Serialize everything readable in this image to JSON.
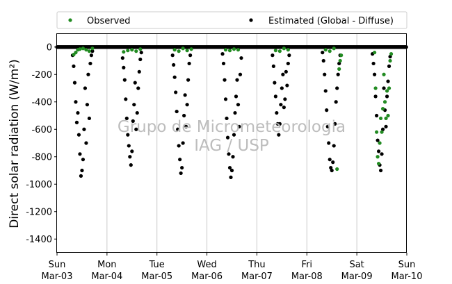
{
  "chart_data": {
    "type": "scatter",
    "title": "",
    "ylabel": "Direct solar radiation (W/m²)",
    "xlabel": "",
    "ylim": [
      -1500,
      100
    ],
    "yticks": [
      0,
      -200,
      -400,
      -600,
      -800,
      -1000,
      -1200,
      -1400
    ],
    "xlim": [
      "2019-03-03 00:00",
      "2019-03-10 00:00"
    ],
    "x_ticks": [
      {
        "day": "Sun",
        "date": "Mar-03"
      },
      {
        "day": "Mon",
        "date": "Mar-04"
      },
      {
        "day": "Tue",
        "date": "Mar-05"
      },
      {
        "day": "Wed",
        "date": "Mar-06"
      },
      {
        "day": "Thu",
        "date": "Mar-07"
      },
      {
        "day": "Fri",
        "date": "Mar-08"
      },
      {
        "day": "Sat",
        "date": "Mar-09"
      },
      {
        "day": "Sun",
        "date": "Mar-10"
      }
    ],
    "grid": "vertical",
    "legend_position": "above-top",
    "watermark": [
      "Grupo de Micrometeorologia",
      "IAG / USP"
    ],
    "series": [
      {
        "name": "Observed",
        "color": "#228b22",
        "points": [
          {
            "day": 0,
            "hour": 8.0,
            "value": -55
          },
          {
            "day": 0,
            "hour": 9.0,
            "value": -40
          },
          {
            "day": 0,
            "hour": 10.0,
            "value": -20
          },
          {
            "day": 0,
            "hour": 11.0,
            "value": -15
          },
          {
            "day": 0,
            "hour": 12.5,
            "value": -10
          },
          {
            "day": 0,
            "hour": 14.0,
            "value": -20
          },
          {
            "day": 0,
            "hour": 15.5,
            "value": -30
          },
          {
            "day": 0,
            "hour": 17.0,
            "value": -10
          },
          {
            "day": 1,
            "hour": 8.0,
            "value": -35
          },
          {
            "day": 1,
            "hour": 10.0,
            "value": -25
          },
          {
            "day": 1,
            "hour": 12.0,
            "value": -20
          },
          {
            "day": 1,
            "hour": 14.0,
            "value": -30
          },
          {
            "day": 1,
            "hour": 16.0,
            "value": -15
          },
          {
            "day": 2,
            "hour": 8.5,
            "value": -20
          },
          {
            "day": 2,
            "hour": 10.5,
            "value": -30
          },
          {
            "day": 2,
            "hour": 12.5,
            "value": -10
          },
          {
            "day": 2,
            "hour": 14.5,
            "value": -25
          },
          {
            "day": 2,
            "hour": 16.5,
            "value": -15
          },
          {
            "day": 3,
            "hour": 9.0,
            "value": -20
          },
          {
            "day": 3,
            "hour": 11.0,
            "value": -25
          },
          {
            "day": 3,
            "hour": 13.0,
            "value": -15
          },
          {
            "day": 3,
            "hour": 15.0,
            "value": -20
          },
          {
            "day": 4,
            "hour": 9.0,
            "value": -25
          },
          {
            "day": 4,
            "hour": 11.0,
            "value": -30
          },
          {
            "day": 4,
            "hour": 13.0,
            "value": -10
          },
          {
            "day": 4,
            "hour": 15.0,
            "value": -20
          },
          {
            "day": 5,
            "hour": 9.0,
            "value": -20
          },
          {
            "day": 5,
            "hour": 11.0,
            "value": -30
          },
          {
            "day": 5,
            "hour": 13.0,
            "value": -10
          },
          {
            "day": 5,
            "hour": 14.5,
            "value": -890
          },
          {
            "day": 5,
            "hour": 15.5,
            "value": -160
          },
          {
            "day": 5,
            "hour": 16.0,
            "value": -100
          },
          {
            "day": 5,
            "hour": 16.5,
            "value": -60
          },
          {
            "day": 6,
            "hour": 8.5,
            "value": -40
          },
          {
            "day": 6,
            "hour": 9.0,
            "value": -300
          },
          {
            "day": 6,
            "hour": 9.5,
            "value": -620
          },
          {
            "day": 6,
            "hour": 10.0,
            "value": -800
          },
          {
            "day": 6,
            "hour": 10.5,
            "value": -850
          },
          {
            "day": 6,
            "hour": 11.0,
            "value": -700
          },
          {
            "day": 6,
            "hour": 11.5,
            "value": -520
          },
          {
            "day": 6,
            "hour": 12.0,
            "value": -620
          },
          {
            "day": 6,
            "hour": 12.5,
            "value": -450
          },
          {
            "day": 6,
            "hour": 13.0,
            "value": -200
          },
          {
            "day": 6,
            "hour": 13.5,
            "value": -400
          },
          {
            "day": 6,
            "hour": 14.0,
            "value": -520
          },
          {
            "day": 6,
            "hour": 14.5,
            "value": -320
          },
          {
            "day": 6,
            "hour": 15.0,
            "value": -500
          },
          {
            "day": 6,
            "hour": 15.5,
            "value": -300
          },
          {
            "day": 6,
            "hour": 16.0,
            "value": -100
          },
          {
            "day": 6,
            "hour": 16.5,
            "value": -50
          }
        ]
      },
      {
        "name": "Estimated (Global - Diffuse)",
        "color": "#000000",
        "points": [
          {
            "day": 0,
            "hour": 7.5,
            "value": -60
          },
          {
            "day": 0,
            "hour": 8.0,
            "value": -140
          },
          {
            "day": 0,
            "hour": 8.5,
            "value": -260
          },
          {
            "day": 0,
            "hour": 9.0,
            "value": -400
          },
          {
            "day": 0,
            "hour": 9.5,
            "value": -550
          },
          {
            "day": 0,
            "hour": 10.0,
            "value": -480
          },
          {
            "day": 0,
            "hour": 10.5,
            "value": -640
          },
          {
            "day": 0,
            "hour": 11.0,
            "value": -780
          },
          {
            "day": 0,
            "hour": 11.5,
            "value": -940
          },
          {
            "day": 0,
            "hour": 12.0,
            "value": -900
          },
          {
            "day": 0,
            "hour": 12.5,
            "value": -820
          },
          {
            "day": 0,
            "hour": 13.0,
            "value": -600
          },
          {
            "day": 0,
            "hour": 13.5,
            "value": -300
          },
          {
            "day": 0,
            "hour": 14.0,
            "value": -700
          },
          {
            "day": 0,
            "hour": 14.5,
            "value": -420
          },
          {
            "day": 0,
            "hour": 15.0,
            "value": -200
          },
          {
            "day": 0,
            "hour": 15.5,
            "value": -520
          },
          {
            "day": 0,
            "hour": 16.0,
            "value": -120
          },
          {
            "day": 0,
            "hour": 16.5,
            "value": -60
          },
          {
            "day": 0,
            "hour": 17.0,
            "value": -30
          },
          {
            "day": 1,
            "hour": 7.5,
            "value": -80
          },
          {
            "day": 1,
            "hour": 8.0,
            "value": -150
          },
          {
            "day": 1,
            "hour": 8.5,
            "value": -240
          },
          {
            "day": 1,
            "hour": 9.0,
            "value": -380
          },
          {
            "day": 1,
            "hour": 9.5,
            "value": -520
          },
          {
            "day": 1,
            "hour": 10.0,
            "value": -640
          },
          {
            "day": 1,
            "hour": 10.5,
            "value": -720
          },
          {
            "day": 1,
            "hour": 11.0,
            "value": -800
          },
          {
            "day": 1,
            "hour": 11.5,
            "value": -860
          },
          {
            "day": 1,
            "hour": 12.0,
            "value": -760
          },
          {
            "day": 1,
            "hour": 12.5,
            "value": -540
          },
          {
            "day": 1,
            "hour": 13.0,
            "value": -420
          },
          {
            "day": 1,
            "hour": 13.5,
            "value": -260
          },
          {
            "day": 1,
            "hour": 14.0,
            "value": -600
          },
          {
            "day": 1,
            "hour": 14.5,
            "value": -480
          },
          {
            "day": 1,
            "hour": 15.0,
            "value": -300
          },
          {
            "day": 1,
            "hour": 15.5,
            "value": -180
          },
          {
            "day": 1,
            "hour": 16.0,
            "value": -90
          },
          {
            "day": 1,
            "hour": 16.5,
            "value": -40
          },
          {
            "day": 2,
            "hour": 7.5,
            "value": -60
          },
          {
            "day": 2,
            "hour": 8.0,
            "value": -130
          },
          {
            "day": 2,
            "hour": 8.5,
            "value": -220
          },
          {
            "day": 2,
            "hour": 9.0,
            "value": -330
          },
          {
            "day": 2,
            "hour": 9.5,
            "value": -470
          },
          {
            "day": 2,
            "hour": 10.0,
            "value": -600
          },
          {
            "day": 2,
            "hour": 10.5,
            "value": -720
          },
          {
            "day": 2,
            "hour": 11.0,
            "value": -820
          },
          {
            "day": 2,
            "hour": 11.5,
            "value": -920
          },
          {
            "day": 2,
            "hour": 12.0,
            "value": -880
          },
          {
            "day": 2,
            "hour": 12.5,
            "value": -700
          },
          {
            "day": 2,
            "hour": 13.0,
            "value": -500
          },
          {
            "day": 2,
            "hour": 13.5,
            "value": -350
          },
          {
            "day": 2,
            "hour": 14.0,
            "value": -580
          },
          {
            "day": 2,
            "hour": 14.5,
            "value": -420
          },
          {
            "day": 2,
            "hour": 15.0,
            "value": -240
          },
          {
            "day": 2,
            "hour": 15.5,
            "value": -120
          },
          {
            "day": 2,
            "hour": 16.0,
            "value": -60
          },
          {
            "day": 3,
            "hour": 7.5,
            "value": -50
          },
          {
            "day": 3,
            "hour": 8.0,
            "value": -120
          },
          {
            "day": 3,
            "hour": 8.5,
            "value": -240
          },
          {
            "day": 3,
            "hour": 9.0,
            "value": -380
          },
          {
            "day": 3,
            "hour": 9.5,
            "value": -520
          },
          {
            "day": 3,
            "hour": 10.0,
            "value": -660
          },
          {
            "day": 3,
            "hour": 10.5,
            "value": -780
          },
          {
            "day": 3,
            "hour": 11.0,
            "value": -880
          },
          {
            "day": 3,
            "hour": 11.5,
            "value": -950
          },
          {
            "day": 3,
            "hour": 12.0,
            "value": -900
          },
          {
            "day": 3,
            "hour": 12.5,
            "value": -800
          },
          {
            "day": 3,
            "hour": 13.0,
            "value": -640
          },
          {
            "day": 3,
            "hour": 13.5,
            "value": -480
          },
          {
            "day": 3,
            "hour": 14.0,
            "value": -360
          },
          {
            "day": 3,
            "hour": 14.5,
            "value": -240
          },
          {
            "day": 3,
            "hour": 15.0,
            "value": -420
          },
          {
            "day": 3,
            "hour": 15.5,
            "value": -580
          },
          {
            "day": 3,
            "hour": 16.0,
            "value": -200
          },
          {
            "day": 3,
            "hour": 16.5,
            "value": -80
          },
          {
            "day": 4,
            "hour": 7.5,
            "value": -60
          },
          {
            "day": 4,
            "hour": 8.0,
            "value": -140
          },
          {
            "day": 4,
            "hour": 8.5,
            "value": -260
          },
          {
            "day": 4,
            "hour": 9.0,
            "value": -360
          },
          {
            "day": 4,
            "hour": 9.5,
            "value": -480
          },
          {
            "day": 4,
            "hour": 10.0,
            "value": -560
          },
          {
            "day": 4,
            "hour": 10.5,
            "value": -640
          },
          {
            "day": 4,
            "hour": 11.0,
            "value": -560
          },
          {
            "day": 4,
            "hour": 11.5,
            "value": -420
          },
          {
            "day": 4,
            "hour": 12.0,
            "value": -300
          },
          {
            "day": 4,
            "hour": 12.5,
            "value": -200
          },
          {
            "day": 4,
            "hour": 13.0,
            "value": -440
          },
          {
            "day": 4,
            "hour": 13.5,
            "value": -380
          },
          {
            "day": 4,
            "hour": 14.0,
            "value": -180
          },
          {
            "day": 4,
            "hour": 14.5,
            "value": -280
          },
          {
            "day": 4,
            "hour": 15.0,
            "value": -120
          },
          {
            "day": 4,
            "hour": 15.5,
            "value": -60
          },
          {
            "day": 5,
            "hour": 7.5,
            "value": -40
          },
          {
            "day": 5,
            "hour": 8.0,
            "value": -100
          },
          {
            "day": 5,
            "hour": 8.5,
            "value": -200
          },
          {
            "day": 5,
            "hour": 9.0,
            "value": -320
          },
          {
            "day": 5,
            "hour": 9.5,
            "value": -460
          },
          {
            "day": 5,
            "hour": 10.0,
            "value": -580
          },
          {
            "day": 5,
            "hour": 10.5,
            "value": -700
          },
          {
            "day": 5,
            "hour": 11.0,
            "value": -820
          },
          {
            "day": 5,
            "hour": 11.5,
            "value": -880
          },
          {
            "day": 5,
            "hour": 12.0,
            "value": -900
          },
          {
            "day": 5,
            "hour": 12.5,
            "value": -840
          },
          {
            "day": 5,
            "hour": 13.0,
            "value": -720
          },
          {
            "day": 5,
            "hour": 13.5,
            "value": -560
          },
          {
            "day": 5,
            "hour": 14.0,
            "value": -400
          },
          {
            "day": 5,
            "hour": 14.5,
            "value": -300
          },
          {
            "day": 5,
            "hour": 15.0,
            "value": -200
          },
          {
            "day": 5,
            "hour": 15.5,
            "value": -120
          },
          {
            "day": 5,
            "hour": 16.0,
            "value": -60
          },
          {
            "day": 6,
            "hour": 7.5,
            "value": -50
          },
          {
            "day": 6,
            "hour": 8.0,
            "value": -120
          },
          {
            "day": 6,
            "hour": 8.5,
            "value": -200
          },
          {
            "day": 6,
            "hour": 9.0,
            "value": -360
          },
          {
            "day": 6,
            "hour": 9.5,
            "value": -500
          },
          {
            "day": 6,
            "hour": 10.0,
            "value": -680
          },
          {
            "day": 6,
            "hour": 10.5,
            "value": -760
          },
          {
            "day": 6,
            "hour": 11.0,
            "value": -860
          },
          {
            "day": 6,
            "hour": 11.5,
            "value": -900
          },
          {
            "day": 6,
            "hour": 12.0,
            "value": -780
          },
          {
            "day": 6,
            "hour": 12.5,
            "value": -600
          },
          {
            "day": 6,
            "hour": 13.0,
            "value": -300
          },
          {
            "day": 6,
            "hour": 13.5,
            "value": -460
          },
          {
            "day": 6,
            "hour": 14.0,
            "value": -580
          },
          {
            "day": 6,
            "hour": 14.5,
            "value": -360
          },
          {
            "day": 6,
            "hour": 15.0,
            "value": -250
          },
          {
            "day": 6,
            "hour": 15.5,
            "value": -140
          },
          {
            "day": 6,
            "hour": 16.0,
            "value": -70
          }
        ]
      }
    ]
  }
}
